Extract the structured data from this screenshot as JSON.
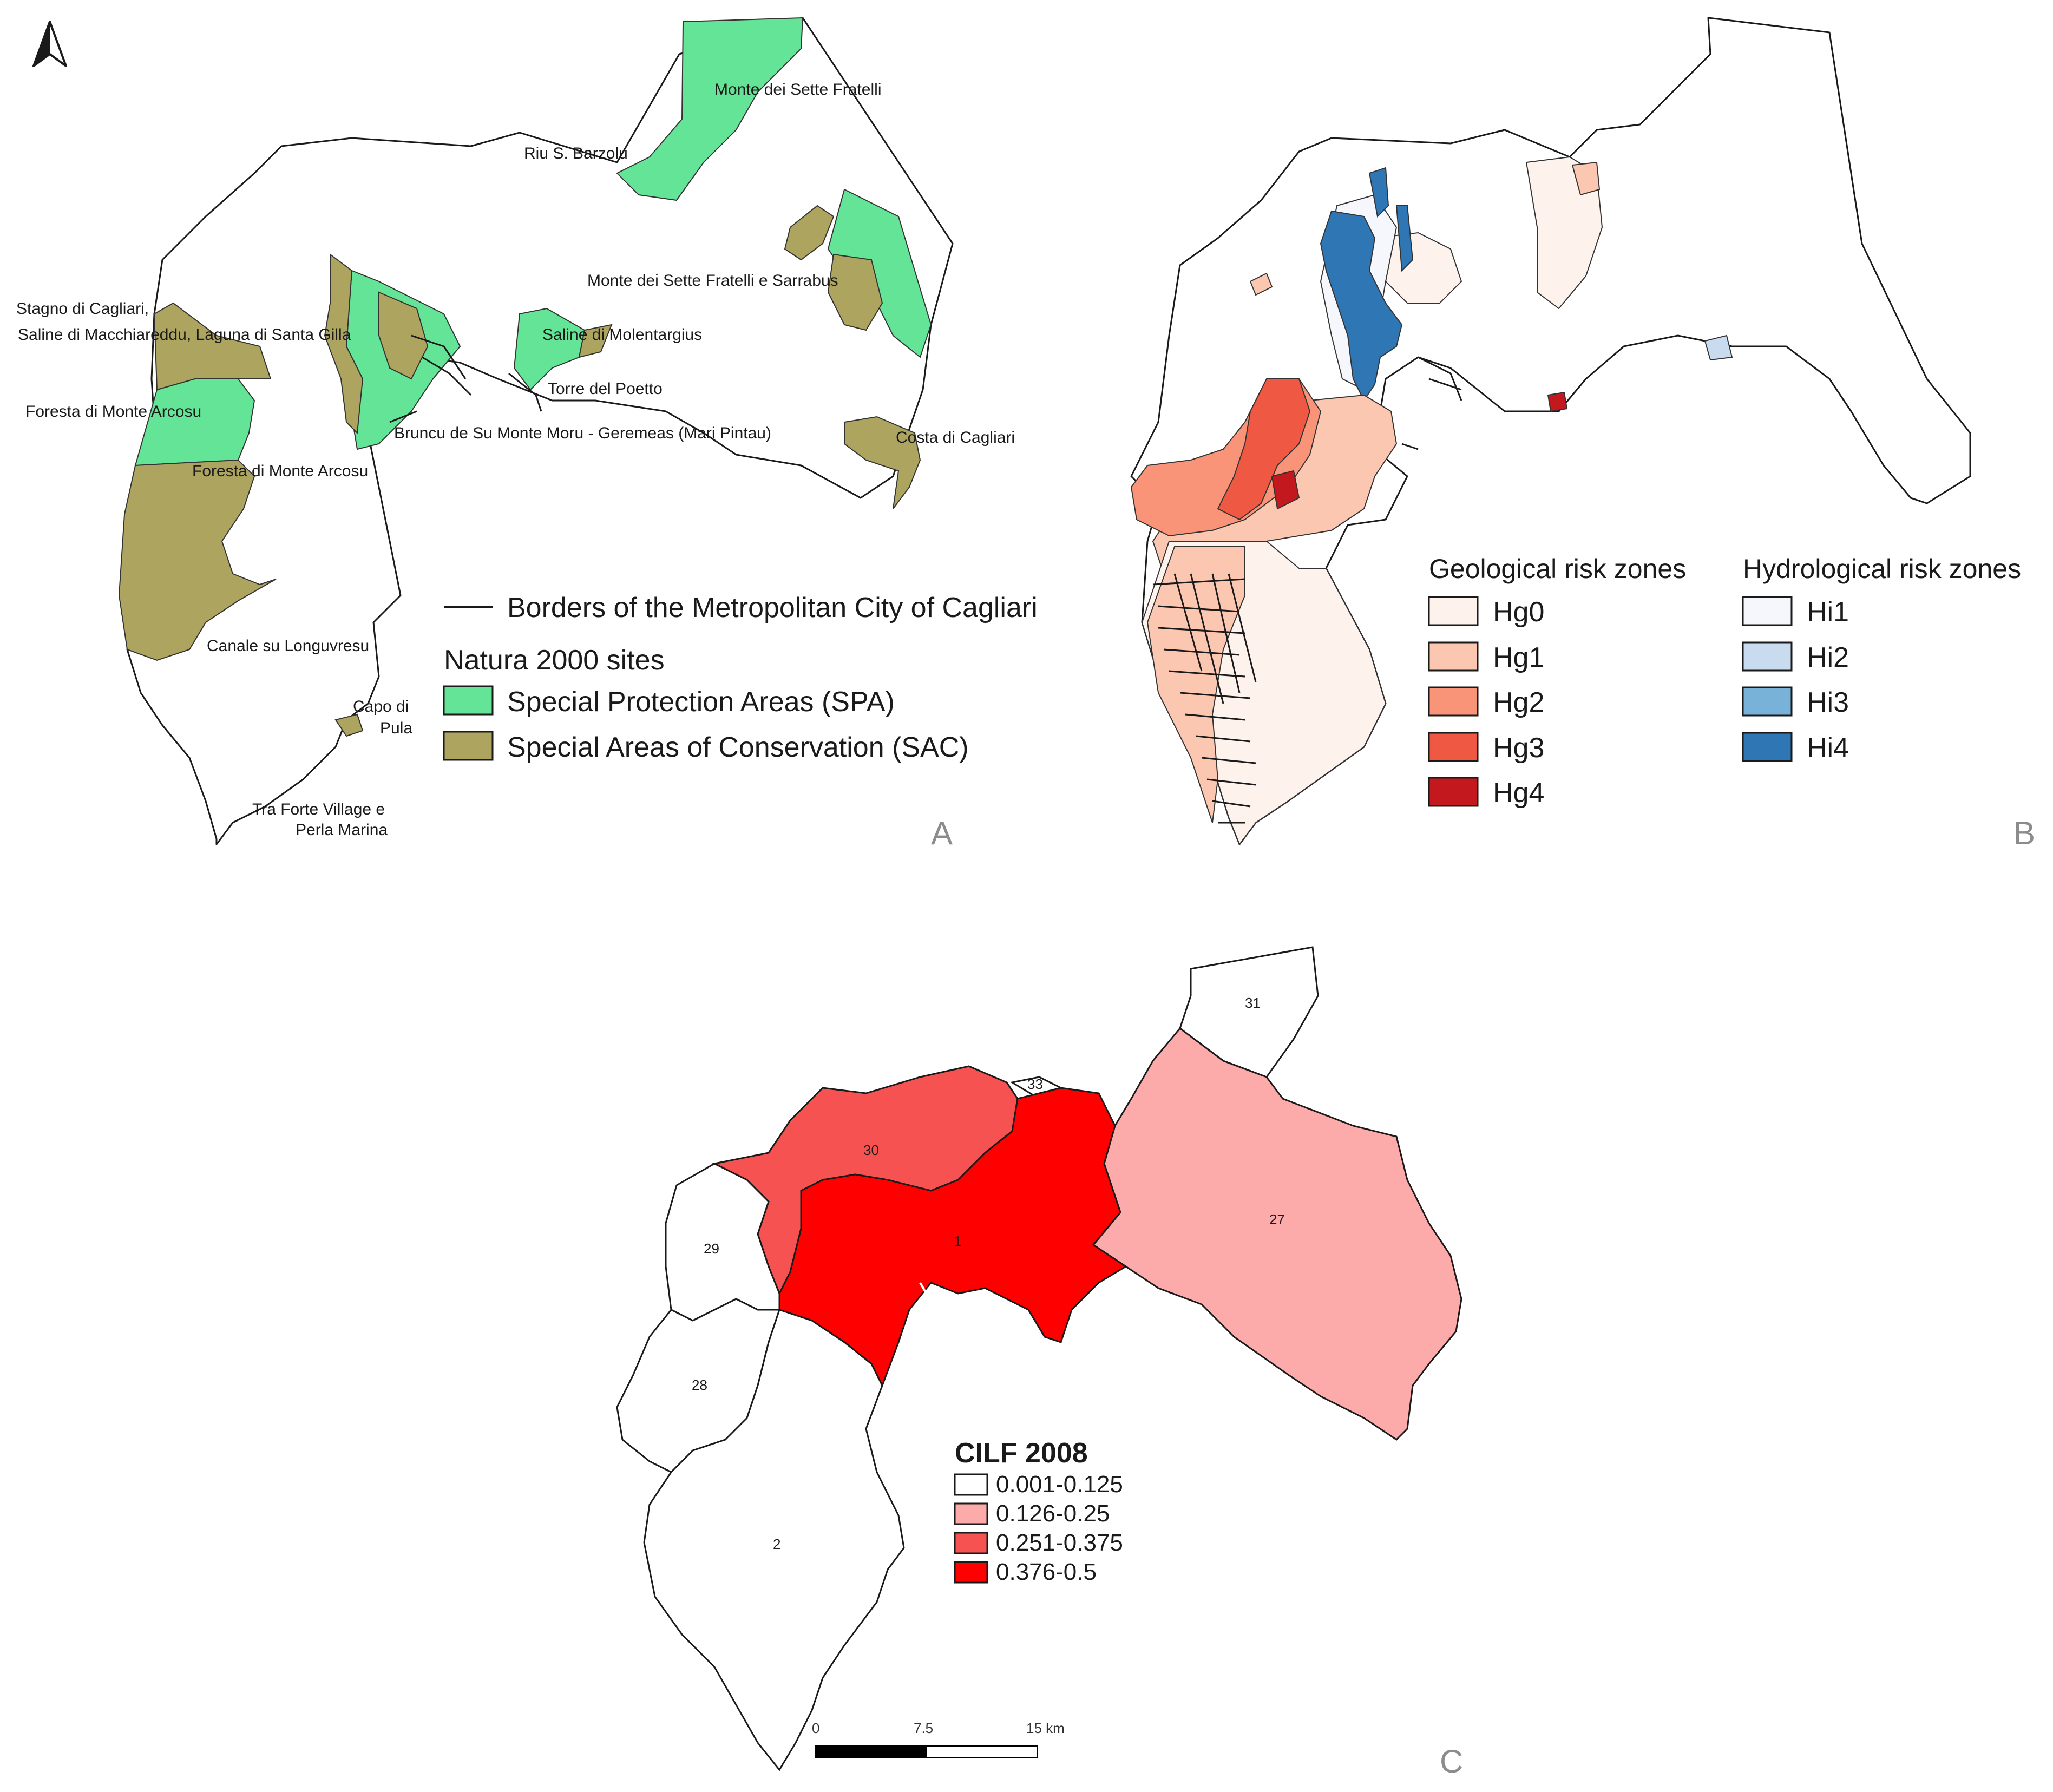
{
  "colors": {
    "spa": "#63e497",
    "sac": "#ada55f",
    "hg0": "#fef3ec",
    "hg1": "#fcc7b0",
    "hg2": "#f99478",
    "hg3": "#ef5843",
    "hg4": "#c4181f",
    "hi1": "#f6f7fd",
    "hi2": "#c9dcef",
    "hi3": "#78b2d8",
    "hi4": "#2f76b5",
    "cilf1": "#ffffff",
    "cilf2": "#fcaaaa",
    "cilf3": "#f75252",
    "cilf4": "#ff0000"
  },
  "north_arrow": {
    "icon": "north-arrow-icon"
  },
  "panel_a": {
    "panel_letter": "A",
    "site_labels": {
      "monte_sette_fratelli": "Monte dei Sette Fratelli",
      "riu_barzolu": "Riu S. Barzolu",
      "monte_sette_sarrabus": "Monte dei Sette Fratelli e Sarrabus",
      "stagno_cagliari": "Stagno di Cagliari,",
      "saline_macchiareddu": "Saline di Macchiareddu, Laguna di Santa Gilla",
      "saline_molentargius": "Saline di Molentargius",
      "torre_poetto": "Torre del Poetto",
      "foresta_arcosu_1": "Foresta di Monte Arcosu",
      "bruncu": "Bruncu de Su Monte Moru - Geremeas (Mari Pintau)",
      "costa_cagliari": "Costa di Cagliari",
      "foresta_arcosu_2": "Foresta di Monte Arcosu",
      "canale_longuvresu": "Canale su Longuvresu",
      "capo_di": "Capo di",
      "pula": "Pula",
      "tra_forte": "Tra Forte Village e",
      "perla_marina": "Perla Marina"
    },
    "legend": {
      "border_label": "Borders of the Metropolitan City of Cagliari",
      "natura_title": "Natura 2000 sites",
      "spa_label": "Special Protection Areas (SPA)",
      "sac_label": "Special Areas of Conservation (SAC)"
    }
  },
  "panel_b": {
    "panel_letter": "B",
    "geo_title": "Geological risk zones",
    "hydro_title": "Hydrological risk zones",
    "geo_items": [
      "Hg0",
      "Hg1",
      "Hg2",
      "Hg3",
      "Hg4"
    ],
    "hydro_items": [
      "Hi1",
      "Hi2",
      "Hi3",
      "Hi4"
    ]
  },
  "panel_c": {
    "panel_letter": "C",
    "municipality_ids": {
      "m31": "31",
      "m33": "33",
      "m30": "30",
      "m1": "1",
      "m27": "27",
      "m29": "29",
      "m28": "28",
      "m2": "2"
    },
    "legend_title": "CILF 2008",
    "legend_items": [
      "0.001-0.125",
      "0.126-0.25",
      "0.251-0.375",
      "0.376-0.5"
    ],
    "scale_labels": [
      "0",
      "7.5",
      "15 km"
    ]
  }
}
